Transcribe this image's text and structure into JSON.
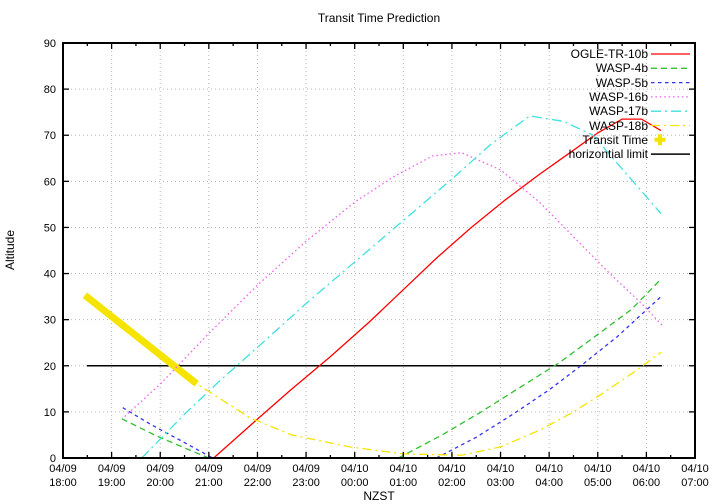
{
  "chart_data": {
    "type": "line",
    "title": "Transit Time Prediction",
    "xlabel": "NZST",
    "ylabel": "Altitude",
    "grid": true,
    "legend_position": "top-right",
    "ylim": [
      0,
      90
    ],
    "y_ticks": [
      0,
      10,
      20,
      30,
      40,
      50,
      60,
      70,
      80,
      90
    ],
    "x_ticks": [
      {
        "date": "04/09",
        "time": "18:00"
      },
      {
        "date": "04/09",
        "time": "19:00"
      },
      {
        "date": "04/09",
        "time": "20:00"
      },
      {
        "date": "04/09",
        "time": "21:00"
      },
      {
        "date": "04/09",
        "time": "22:00"
      },
      {
        "date": "04/09",
        "time": "23:00"
      },
      {
        "date": "04/10",
        "time": "00:00"
      },
      {
        "date": "04/10",
        "time": "01:00"
      },
      {
        "date": "04/10",
        "time": "02:00"
      },
      {
        "date": "04/10",
        "time": "03:00"
      },
      {
        "date": "04/10",
        "time": "04:00"
      },
      {
        "date": "04/10",
        "time": "05:00"
      },
      {
        "date": "04/10",
        "time": "06:00"
      },
      {
        "date": "04/10",
        "time": "07:00"
      }
    ],
    "points_format": "[hours after 04/09 18:00 NZST, altitude degrees]",
    "series": [
      {
        "name": "OGLE-TR-10b",
        "color": "#ff0000",
        "style": "solid",
        "dash": "",
        "width": 1.3,
        "segments": [
          [
            [
              3.1,
              0
            ],
            [
              3.9,
              7.5
            ],
            [
              4.7,
              14.9
            ],
            [
              5.5,
              22
            ],
            [
              6.3,
              29.5
            ],
            [
              7,
              36.5
            ],
            [
              7.7,
              43.5
            ],
            [
              8.4,
              50
            ],
            [
              9.1,
              56
            ],
            [
              9.8,
              61.5
            ],
            [
              10.4,
              66
            ],
            [
              11,
              70.5
            ],
            [
              11.5,
              73.5
            ],
            [
              11.9,
              73.5
            ],
            [
              12.3,
              71
            ]
          ]
        ]
      },
      {
        "name": "WASP-4b",
        "color": "#30c030",
        "style": "dashed",
        "dash": "6,4",
        "width": 1.3,
        "segments": [
          [
            [
              1.21,
              8.5
            ],
            [
              1.9,
              4.9
            ],
            [
              2.5,
              2.2
            ],
            [
              3,
              0
            ]
          ],
          [
            [
              6.9,
              0
            ],
            [
              7.8,
              5
            ],
            [
              8.6,
              10
            ],
            [
              9.4,
              15.3
            ],
            [
              10.2,
              20.6
            ],
            [
              11,
              26.8
            ],
            [
              11.7,
              32.3
            ],
            [
              12.3,
              38.8
            ]
          ]
        ]
      },
      {
        "name": "WASP-5b",
        "color": "#3333ee",
        "style": "short-dash",
        "dash": "3.5,3.5",
        "width": 1.3,
        "segments": [
          [
            [
              1.23,
              10.9
            ],
            [
              1.8,
              7.3
            ],
            [
              2.4,
              3.9
            ],
            [
              3.08,
              0
            ]
          ],
          [
            [
              7.68,
              0
            ],
            [
              8.5,
              4.5
            ],
            [
              9.3,
              9.8
            ],
            [
              10,
              14.8
            ],
            [
              10.65,
              20
            ],
            [
              11.4,
              26.3
            ],
            [
              12.3,
              35
            ]
          ]
        ]
      },
      {
        "name": "WASP-16b",
        "color": "#ee66ee",
        "style": "dotted",
        "dash": "1.6,2.8",
        "width": 1.3,
        "segments": [
          [
            [
              1.27,
              9
            ],
            [
              2,
              16
            ],
            [
              3,
              27
            ],
            [
              4,
              37.5
            ],
            [
              5,
              47
            ],
            [
              6,
              55.5
            ],
            [
              6.8,
              61
            ],
            [
              7.6,
              65.5
            ],
            [
              8.2,
              66.2
            ],
            [
              9,
              62.5
            ],
            [
              9.8,
              55.5
            ],
            [
              10.5,
              48
            ],
            [
              11.2,
              40.5
            ],
            [
              11.9,
              33.5
            ],
            [
              12.35,
              28.5
            ]
          ]
        ]
      },
      {
        "name": "WASP-17b",
        "color": "#40e0e0",
        "style": "dash-dot",
        "dash": "10,4,2,4",
        "width": 1.3,
        "segments": [
          [
            [
              1.62,
              0
            ],
            [
              2.5,
              9.5
            ],
            [
              3.2,
              16.5
            ],
            [
              4,
              24
            ],
            [
              5,
              33.5
            ],
            [
              6,
              42.5
            ],
            [
              7,
              51.5
            ],
            [
              8,
              60.5
            ],
            [
              8.8,
              68
            ],
            [
              9.6,
              74.2
            ],
            [
              10.3,
              73
            ],
            [
              10.9,
              70
            ],
            [
              11.6,
              61.5
            ],
            [
              12.3,
              53
            ]
          ]
        ]
      },
      {
        "name": "WASP-18b",
        "color": "#f5e400",
        "style": "dash-dot",
        "dash": "9,4,2,4",
        "width": 1.3,
        "segments": [
          [
            [
              0.45,
              35.3
            ],
            [
              1.2,
              28.6
            ],
            [
              2,
              21.8
            ],
            [
              2.75,
              16.1
            ],
            [
              3.85,
              8.7
            ],
            [
              4.7,
              5
            ],
            [
              5.9,
              2.4
            ],
            [
              7,
              0.9
            ],
            [
              8.2,
              0.6
            ],
            [
              9,
              2.4
            ],
            [
              9.8,
              6
            ],
            [
              10.5,
              10
            ],
            [
              11.1,
              14
            ],
            [
              11.7,
              18.3
            ],
            [
              12.3,
              22.9
            ]
          ]
        ]
      },
      {
        "name": "Transit Time",
        "color": "#f5e400",
        "style": "solid",
        "dash": "",
        "width": 7,
        "legend_marker": "plus",
        "segments": [
          [
            [
              0.45,
              35.3
            ],
            [
              2.75,
              16.1
            ]
          ]
        ]
      },
      {
        "name": "horizontial limit",
        "color": "#000000",
        "style": "solid",
        "dash": "",
        "width": 1.5,
        "segments": [
          [
            [
              0.49,
              20
            ],
            [
              12.32,
              20
            ]
          ]
        ]
      }
    ]
  }
}
